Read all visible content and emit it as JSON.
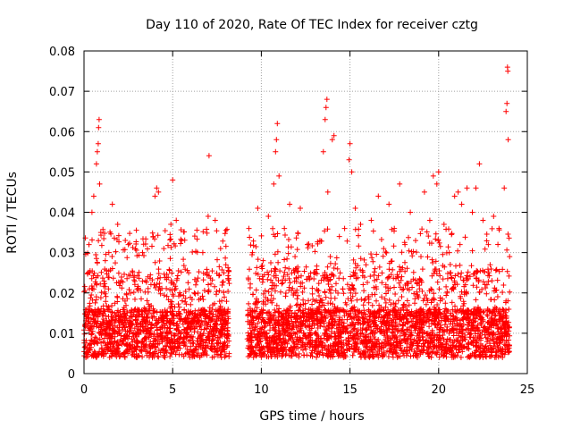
{
  "chart_data": {
    "type": "scatter",
    "title": "Day 110 of 2020, Rate Of TEC Index for receiver cztg",
    "xlabel": "GPS time / hours",
    "ylabel": "ROTI / TECUs",
    "xlim": [
      0,
      25
    ],
    "ylim": [
      0,
      0.08
    ],
    "xticks": [
      0,
      5,
      10,
      15,
      20,
      25
    ],
    "xtick_labels": [
      "0",
      "5",
      "10",
      "15",
      "20",
      "25"
    ],
    "yticks": [
      0,
      0.01,
      0.02,
      0.03,
      0.04,
      0.05,
      0.06,
      0.07,
      0.08
    ],
    "ytick_labels": [
      "0",
      "0.01",
      "0.02",
      "0.03",
      "0.04",
      "0.05",
      "0.06",
      "0.07",
      "0.08"
    ],
    "grid": true,
    "legend": false,
    "marker": "+",
    "color": "#ff0000",
    "data_gap_hours": [
      8.2,
      9.2
    ],
    "series": [
      {
        "name": "ROTI",
        "points": [
          [
            0.1,
            0.012
          ],
          [
            0.3,
            0.021
          ],
          [
            0.45,
            0.04
          ],
          [
            0.55,
            0.044
          ],
          [
            0.7,
            0.052
          ],
          [
            0.75,
            0.055
          ],
          [
            0.8,
            0.057
          ],
          [
            0.82,
            0.061
          ],
          [
            0.85,
            0.063
          ],
          [
            0.88,
            0.047
          ],
          [
            0.95,
            0.035
          ],
          [
            1.2,
            0.028
          ],
          [
            1.4,
            0.03
          ],
          [
            1.6,
            0.042
          ],
          [
            1.9,
            0.037
          ],
          [
            2.1,
            0.023
          ],
          [
            2.5,
            0.032
          ],
          [
            3.0,
            0.021
          ],
          [
            3.3,
            0.03
          ],
          [
            3.6,
            0.024
          ],
          [
            3.9,
            0.034
          ],
          [
            4.0,
            0.044
          ],
          [
            4.1,
            0.046
          ],
          [
            4.2,
            0.045
          ],
          [
            4.5,
            0.031
          ],
          [
            4.9,
            0.037
          ],
          [
            5.0,
            0.048
          ],
          [
            5.2,
            0.038
          ],
          [
            5.5,
            0.033
          ],
          [
            5.9,
            0.025
          ],
          [
            6.3,
            0.022
          ],
          [
            6.7,
            0.03
          ],
          [
            7.0,
            0.039
          ],
          [
            7.05,
            0.054
          ],
          [
            7.4,
            0.038
          ],
          [
            7.7,
            0.031
          ],
          [
            8.0,
            0.027
          ],
          [
            9.3,
            0.036
          ],
          [
            9.5,
            0.03
          ],
          [
            9.8,
            0.041
          ],
          [
            10.1,
            0.028
          ],
          [
            10.4,
            0.039
          ],
          [
            10.7,
            0.047
          ],
          [
            10.8,
            0.055
          ],
          [
            10.85,
            0.058
          ],
          [
            10.9,
            0.062
          ],
          [
            11.0,
            0.049
          ],
          [
            11.3,
            0.036
          ],
          [
            11.6,
            0.042
          ],
          [
            11.9,
            0.029
          ],
          [
            12.2,
            0.041
          ],
          [
            12.6,
            0.032
          ],
          [
            13.0,
            0.025
          ],
          [
            13.3,
            0.033
          ],
          [
            13.5,
            0.055
          ],
          [
            13.6,
            0.063
          ],
          [
            13.65,
            0.066
          ],
          [
            13.7,
            0.068
          ],
          [
            13.75,
            0.045
          ],
          [
            14.0,
            0.058
          ],
          [
            14.1,
            0.059
          ],
          [
            14.4,
            0.034
          ],
          [
            14.7,
            0.036
          ],
          [
            14.95,
            0.053
          ],
          [
            15.0,
            0.057
          ],
          [
            15.1,
            0.05
          ],
          [
            15.3,
            0.041
          ],
          [
            15.6,
            0.037
          ],
          [
            15.9,
            0.027
          ],
          [
            16.2,
            0.038
          ],
          [
            16.6,
            0.044
          ],
          [
            16.9,
            0.031
          ],
          [
            17.2,
            0.042
          ],
          [
            17.5,
            0.036
          ],
          [
            17.8,
            0.047
          ],
          [
            18.1,
            0.032
          ],
          [
            18.4,
            0.04
          ],
          [
            18.7,
            0.033
          ],
          [
            19.0,
            0.029
          ],
          [
            19.2,
            0.045
          ],
          [
            19.5,
            0.038
          ],
          [
            19.7,
            0.049
          ],
          [
            19.9,
            0.047
          ],
          [
            20.0,
            0.05
          ],
          [
            20.3,
            0.037
          ],
          [
            20.6,
            0.03
          ],
          [
            20.9,
            0.044
          ],
          [
            21.1,
            0.045
          ],
          [
            21.3,
            0.042
          ],
          [
            21.6,
            0.046
          ],
          [
            21.9,
            0.04
          ],
          [
            22.1,
            0.046
          ],
          [
            22.3,
            0.052
          ],
          [
            22.5,
            0.038
          ],
          [
            22.8,
            0.032
          ],
          [
            23.1,
            0.039
          ],
          [
            23.4,
            0.036
          ],
          [
            23.7,
            0.046
          ],
          [
            23.8,
            0.065
          ],
          [
            23.85,
            0.067
          ],
          [
            23.88,
            0.076
          ],
          [
            23.9,
            0.075
          ],
          [
            23.92,
            0.058
          ],
          [
            24.0,
            0.029
          ],
          [
            0.2,
            0.006
          ],
          [
            0.6,
            0.008
          ],
          [
            1.0,
            0.011
          ],
          [
            1.5,
            0.009
          ],
          [
            2.0,
            0.012
          ],
          [
            2.6,
            0.007
          ],
          [
            3.1,
            0.01
          ],
          [
            3.7,
            0.005
          ],
          [
            4.3,
            0.011
          ],
          [
            4.8,
            0.008
          ],
          [
            5.4,
            0.013
          ],
          [
            6.0,
            0.009
          ],
          [
            6.6,
            0.012
          ],
          [
            7.2,
            0.006
          ],
          [
            7.8,
            0.01
          ],
          [
            9.4,
            0.009
          ],
          [
            10.0,
            0.011
          ],
          [
            10.6,
            0.006
          ],
          [
            11.2,
            0.012
          ],
          [
            11.8,
            0.008
          ],
          [
            12.4,
            0.01
          ],
          [
            13.1,
            0.007
          ],
          [
            13.8,
            0.012
          ],
          [
            14.5,
            0.009
          ],
          [
            15.2,
            0.011
          ],
          [
            15.8,
            0.005
          ],
          [
            16.4,
            0.01
          ],
          [
            17.0,
            0.012
          ],
          [
            17.6,
            0.008
          ],
          [
            18.2,
            0.011
          ],
          [
            18.8,
            0.004
          ],
          [
            19.4,
            0.01
          ],
          [
            20.1,
            0.012
          ],
          [
            20.7,
            0.007
          ],
          [
            21.2,
            0.011
          ],
          [
            21.8,
            0.009
          ],
          [
            22.4,
            0.012
          ],
          [
            23.0,
            0.006
          ],
          [
            23.6,
            0.01
          ]
        ]
      }
    ]
  }
}
